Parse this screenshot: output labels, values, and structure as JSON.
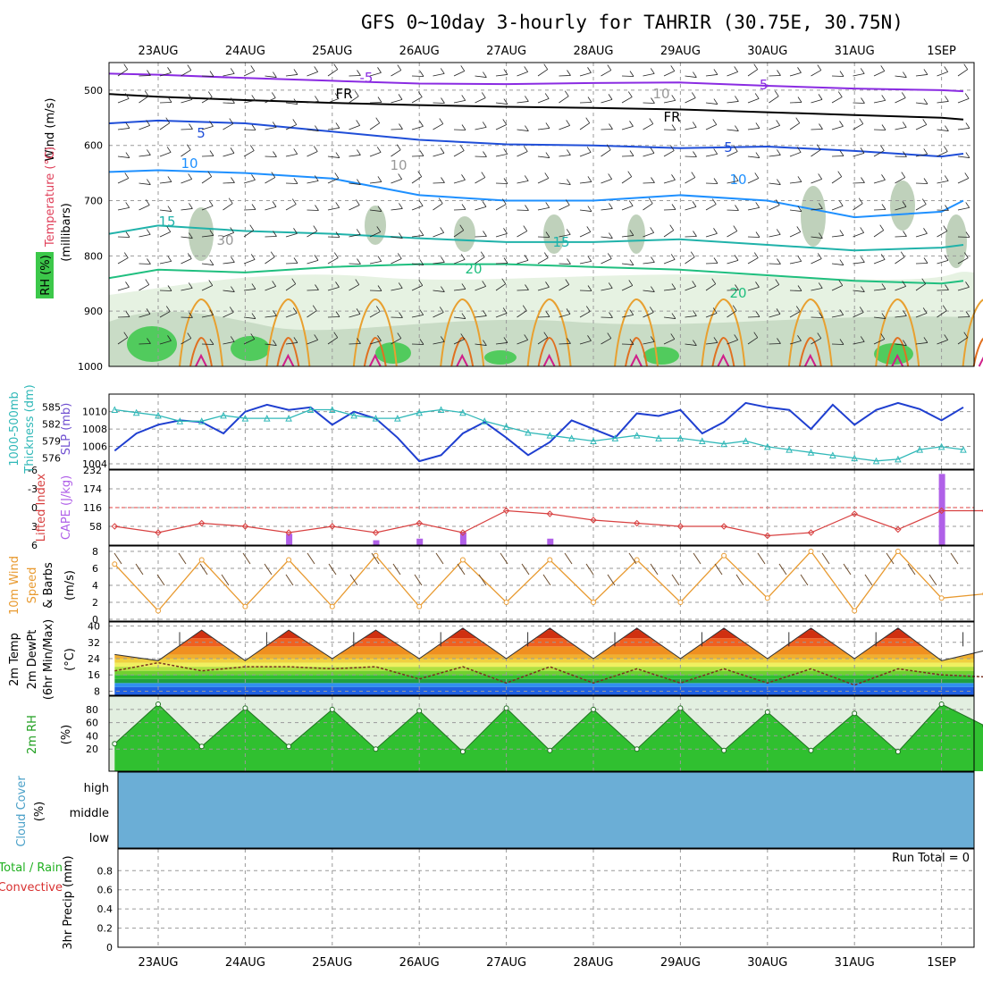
{
  "title": "GFS 0~10day 3-hourly for TAHRIR (30.75E, 30.75N)",
  "dates": [
    "23AUG",
    "24AUG",
    "25AUG",
    "26AUG",
    "27AUG",
    "28AUG",
    "29AUG",
    "30AUG",
    "31AUG",
    "1SEP"
  ],
  "colors": {
    "purple": "#8a2be2",
    "black": "#000000",
    "blue": "#1f4ed8",
    "sky": "#1e90ff",
    "teal": "#20b2aa",
    "green": "#1fbf7f",
    "orange": "#e8a030",
    "magenta": "#d0208a",
    "rh_green": "#3cc84a",
    "slp": "#1f3fd0",
    "thick": "#30b8b8",
    "lifted": "#d84040",
    "cape_bar": "#b060e8",
    "wind10": "#e89a30",
    "cloud": "#6baed6"
  },
  "panels": {
    "upper": {
      "ylabel_wind": "Wind (m/s)",
      "ylabel_temp": "Temperature (°C)",
      "ylabel_mb": "(millibars)",
      "ylabel_rh": "RH (%)",
      "yticks": [
        "500",
        "600",
        "700",
        "800",
        "900",
        "1000"
      ],
      "contour_labels": [
        "-5",
        "-5",
        "FR",
        "FR",
        "5",
        "5",
        "10",
        "10",
        "15",
        "15",
        "20",
        "20",
        "10",
        "10",
        "30"
      ]
    },
    "slp": {
      "ylabel_left": "1000-500mb",
      "ylabel_left2": "Thickness (dm)",
      "ylabel_right": "SLP (mb)",
      "left_ticks": [
        "585",
        "582",
        "579",
        "576"
      ],
      "right_ticks": [
        "1010",
        "1008",
        "1006",
        "1004"
      ]
    },
    "cape": {
      "ylabel_left": "Lifted Index",
      "ylabel_right": "CAPE (J/kg)",
      "left_ticks": [
        "-6",
        "-3",
        "0",
        "3",
        "6"
      ],
      "right_ticks": [
        "232",
        "174",
        "116",
        "58"
      ]
    },
    "wind": {
      "ylabel1": "10m Wind",
      "ylabel2": "Speed",
      "ylabel3": "& Barbs",
      "unit": "(m/s)",
      "ticks": [
        "8",
        "6",
        "4",
        "2",
        "0"
      ]
    },
    "temp": {
      "ylabel1": "2m Temp",
      "ylabel2": "2m DewPt",
      "ylabel3": "(6hr Min/Max)",
      "unit": "(°C)",
      "ticks": [
        "40",
        "32",
        "24",
        "16",
        "8"
      ]
    },
    "rh": {
      "ylabel": "2m RH",
      "unit": "(%)",
      "ticks": [
        "80",
        "60",
        "40",
        "20"
      ]
    },
    "cloud": {
      "ylabel1": "Cloud Cover",
      "unit": "(%)",
      "levels": [
        "high",
        "middle",
        "low"
      ]
    },
    "precip": {
      "ylabel1": "3hr Precip (mm)",
      "ylabel2": "Total / Rain",
      "ylabel3": "Convective",
      "ticks": [
        "0.8",
        "0.6",
        "0.4",
        "0.2",
        "0"
      ],
      "run_total": "Run Total = 0"
    }
  },
  "chart_data": [
    {
      "type": "line",
      "name": "upper-air isotherms",
      "x": [
        "22AUG 12Z",
        "23AUG",
        "24AUG",
        "25AUG",
        "26AUG",
        "27AUG",
        "28AUG",
        "29AUG",
        "30AUG",
        "31AUG",
        "1SEP",
        "1SEP 06Z"
      ],
      "series": [
        {
          "name": "-5",
          "values": [
            470,
            472,
            478,
            483,
            488,
            489,
            487,
            486,
            492,
            497,
            500,
            502
          ]
        },
        {
          "name": "FR",
          "values": [
            507,
            512,
            518,
            523,
            527,
            530,
            532,
            535,
            540,
            545,
            550,
            553
          ]
        },
        {
          "name": "5",
          "values": [
            560,
            555,
            560,
            575,
            590,
            598,
            600,
            605,
            602,
            610,
            620,
            615
          ]
        },
        {
          "name": "10",
          "values": [
            648,
            645,
            650,
            660,
            690,
            700,
            700,
            690,
            700,
            730,
            720,
            700
          ]
        },
        {
          "name": "15",
          "values": [
            760,
            745,
            755,
            760,
            768,
            775,
            775,
            770,
            780,
            790,
            785,
            780
          ]
        },
        {
          "name": "20",
          "values": [
            840,
            825,
            830,
            820,
            815,
            815,
            820,
            825,
            835,
            845,
            850,
            845
          ]
        }
      ],
      "ylabel": "(millibars)",
      "ylim": [
        1000,
        450
      ]
    },
    {
      "type": "line",
      "x": [
        "22AUG 12Z",
        "22AUG 18Z",
        "23AUG 00Z",
        "23AUG 06Z",
        "23AUG 12Z",
        "23AUG 18Z",
        "24AUG 00Z",
        "24AUG 06Z",
        "24AUG 12Z",
        "24AUG 18Z",
        "25AUG 00Z",
        "25AUG 06Z",
        "25AUG 12Z",
        "25AUG 18Z",
        "26AUG 00Z",
        "26AUG 06Z",
        "26AUG 12Z",
        "26AUG 18Z",
        "27AUG 00Z",
        "27AUG 06Z",
        "27AUG 12Z",
        "27AUG 18Z",
        "28AUG 00Z",
        "28AUG 06Z",
        "28AUG 12Z",
        "28AUG 18Z",
        "29AUG 00Z",
        "29AUG 06Z",
        "29AUG 12Z",
        "29AUG 18Z",
        "30AUG 00Z",
        "30AUG 06Z",
        "30AUG 12Z",
        "30AUG 18Z",
        "31AUG 00Z",
        "31AUG 06Z",
        "31AUG 12Z",
        "31AUG 18Z",
        "1SEP 00Z",
        "1SEP 06Z"
      ],
      "series": [
        {
          "name": "SLP (mb)",
          "values": [
            1005.5,
            1007.5,
            1008.5,
            1009.0,
            1008.8,
            1007.5,
            1010.0,
            1010.8,
            1010.2,
            1010.5,
            1008.5,
            1010.0,
            1009.2,
            1007.0,
            1004.3,
            1005.0,
            1007.5,
            1008.8,
            1007.0,
            1005.0,
            1006.5,
            1009.0,
            1008.0,
            1007.0,
            1009.8,
            1009.5,
            1010.2,
            1007.5,
            1008.8,
            1011.0,
            1010.5,
            1010.2,
            1008.0,
            1010.8,
            1008.5,
            1010.2,
            1011.0,
            1010.3,
            1009.0,
            1010.5
          ]
        },
        {
          "name": "1000-500mb Thickness (dm)",
          "values": [
            584.5,
            584.0,
            583.5,
            582.5,
            582.5,
            583.5,
            583.0,
            583.0,
            583.0,
            584.5,
            584.5,
            583.5,
            583.0,
            583.0,
            584.0,
            584.5,
            584.0,
            582.5,
            581.5,
            580.5,
            580.0,
            579.5,
            579.0,
            579.5,
            580.0,
            579.5,
            579.5,
            579.0,
            578.5,
            579.0,
            578.0,
            577.5,
            577.0,
            576.5,
            576.0,
            575.5,
            575.8,
            577.5,
            578.0,
            577.5
          ]
        }
      ]
    },
    {
      "type": "line",
      "x": [
        "22AUG 12Z",
        "23AUG 00Z",
        "23AUG 12Z",
        "24AUG 00Z",
        "24AUG 12Z",
        "25AUG 00Z",
        "25AUG 12Z",
        "26AUG 00Z",
        "26AUG 12Z",
        "27AUG 00Z",
        "27AUG 12Z",
        "28AUG 00Z",
        "28AUG 12Z",
        "29AUG 00Z",
        "29AUG 12Z",
        "30AUG 00Z",
        "30AUG 12Z",
        "31AUG 00Z",
        "31AUG 12Z",
        "1SEP 00Z",
        "1SEP 06Z"
      ],
      "series": [
        {
          "name": "Lifted Index",
          "values": [
            3.0,
            4.0,
            2.5,
            3.0,
            4.0,
            3.0,
            4.0,
            2.5,
            4.0,
            0.5,
            1.0,
            2.0,
            2.5,
            3.0,
            3.0,
            4.5,
            4.0,
            1.0,
            3.5,
            0.5,
            0.5
          ]
        },
        {
          "name": "CAPE (J/kg)",
          "values": [
            0,
            0,
            0,
            0,
            35,
            0,
            15,
            20,
            40,
            0,
            20,
            0,
            0,
            0,
            0,
            0,
            0,
            0,
            0,
            220,
            0
          ]
        }
      ],
      "ylim_li": [
        6,
        -6
      ],
      "ylim_cape": [
        0,
        232
      ]
    },
    {
      "type": "line",
      "x": [
        "22AUG 12Z",
        "23AUG 00Z",
        "23AUG 12Z",
        "24AUG 00Z",
        "24AUG 12Z",
        "25AUG 00Z",
        "25AUG 12Z",
        "26AUG 00Z",
        "26AUG 12Z",
        "27AUG 00Z",
        "27AUG 12Z",
        "28AUG 00Z",
        "28AUG 12Z",
        "29AUG 00Z",
        "29AUG 12Z",
        "30AUG 00Z",
        "30AUG 12Z",
        "31AUG 00Z",
        "31AUG 12Z",
        "1SEP 00Z",
        "1SEP 06Z"
      ],
      "series": [
        {
          "name": "10m Wind Speed (m/s)",
          "values": [
            6.5,
            1.0,
            7.0,
            1.5,
            7.0,
            1.5,
            7.5,
            1.5,
            7.0,
            2.0,
            7.0,
            2.0,
            7.0,
            2.0,
            7.5,
            2.5,
            8.0,
            1.0,
            8.0,
            2.5,
            3.0
          ]
        }
      ],
      "ylim": [
        0,
        8
      ]
    },
    {
      "type": "area",
      "x": [
        "22AUG 12Z",
        "23AUG 00Z",
        "23AUG 12Z",
        "24AUG 00Z",
        "24AUG 12Z",
        "25AUG 00Z",
        "25AUG 12Z",
        "26AUG 00Z",
        "26AUG 12Z",
        "27AUG 00Z",
        "27AUG 12Z",
        "28AUG 00Z",
        "28AUG 12Z",
        "29AUG 00Z",
        "29AUG 12Z",
        "30AUG 00Z",
        "30AUG 12Z",
        "31AUG 00Z",
        "31AUG 12Z",
        "1SEP 00Z",
        "1SEP 06Z"
      ],
      "series": [
        {
          "name": "2m Temp (°C)",
          "values": [
            26,
            23,
            38,
            23,
            38,
            24,
            38,
            24,
            39,
            24,
            39,
            24,
            39,
            24,
            39,
            24,
            39,
            24,
            39,
            23,
            28
          ]
        },
        {
          "name": "2m DewPt (°C)",
          "values": [
            18,
            22,
            18,
            20,
            20,
            19,
            20,
            14,
            20,
            12,
            20,
            12,
            19,
            12,
            19,
            12,
            19,
            11,
            19,
            16,
            15
          ]
        }
      ],
      "ylim": [
        6,
        42
      ]
    },
    {
      "type": "area",
      "x": [
        "22AUG 12Z",
        "23AUG 00Z",
        "23AUG 12Z",
        "24AUG 00Z",
        "24AUG 12Z",
        "25AUG 00Z",
        "25AUG 12Z",
        "26AUG 00Z",
        "26AUG 12Z",
        "27AUG 00Z",
        "27AUG 12Z",
        "28AUG 00Z",
        "28AUG 12Z",
        "29AUG 00Z",
        "29AUG 12Z",
        "30AUG 00Z",
        "30AUG 12Z",
        "31AUG 00Z",
        "31AUG 12Z",
        "1SEP 00Z",
        "1SEP 06Z"
      ],
      "series": [
        {
          "name": "2m RH (%)",
          "values": [
            28,
            88,
            24,
            82,
            24,
            80,
            20,
            78,
            16,
            82,
            18,
            80,
            20,
            82,
            18,
            76,
            18,
            74,
            16,
            88,
            55
          ]
        }
      ],
      "ylim": [
        0,
        92
      ]
    },
    {
      "type": "bar",
      "name": "3hr Precip (mm)",
      "values": [
        0
      ],
      "ylim": [
        0,
        1
      ]
    }
  ]
}
